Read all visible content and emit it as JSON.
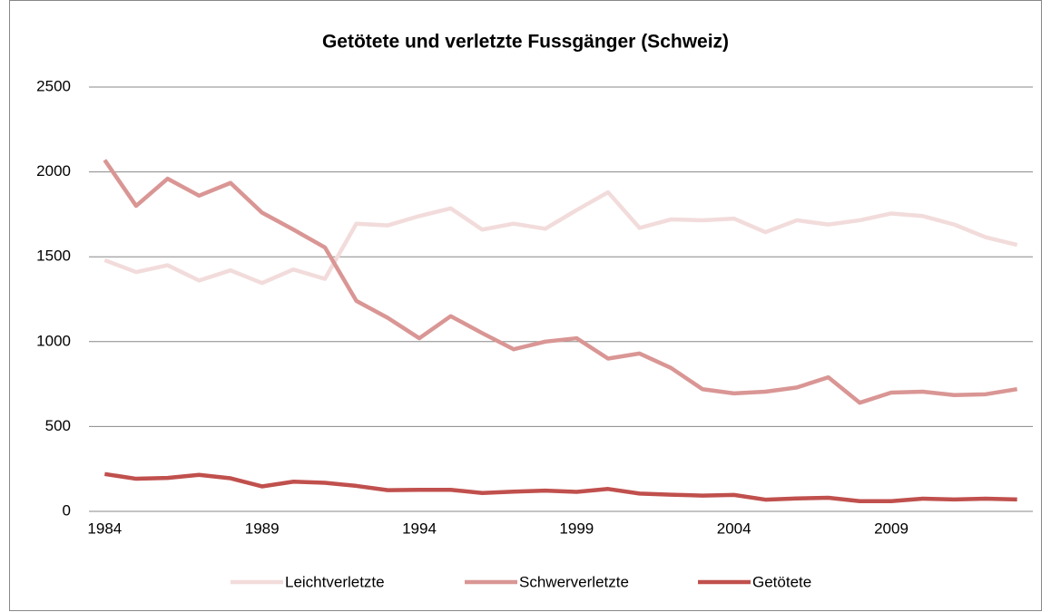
{
  "chart_data": {
    "type": "line",
    "title": "Getötete und verletzte Fussgänger (Schweiz)",
    "categories": [
      "1984",
      null,
      null,
      null,
      null,
      "1989",
      null,
      null,
      null,
      null,
      "1994",
      null,
      null,
      null,
      null,
      "1999",
      null,
      null,
      null,
      null,
      "2004",
      null,
      null,
      null,
      null,
      "2009",
      null,
      null,
      null,
      null
    ],
    "series": [
      {
        "name": "Leichtverletzte",
        "color": "#f2dcdb",
        "values": [
          1480,
          1410,
          1450,
          1360,
          1420,
          1345,
          1425,
          1370,
          1695,
          1685,
          1740,
          1785,
          1660,
          1695,
          1665,
          1775,
          1880,
          1670,
          1720,
          1715,
          1725,
          1645,
          1715,
          1690,
          1715,
          1755,
          1740,
          1690,
          1615,
          1570
        ]
      },
      {
        "name": "Schwerverletzte",
        "color": "#d99694",
        "values": [
          2070,
          1800,
          1960,
          1860,
          1935,
          1760,
          1660,
          1555,
          1240,
          1140,
          1020,
          1150,
          1050,
          955,
          1000,
          1020,
          900,
          930,
          845,
          720,
          695,
          705,
          730,
          790,
          640,
          700,
          705,
          685,
          690,
          720
        ]
      },
      {
        "name": "Getötete",
        "color": "#c0504d",
        "values": [
          220,
          192,
          197,
          215,
          195,
          147,
          175,
          168,
          150,
          125,
          127,
          127,
          108,
          116,
          122,
          115,
          132,
          105,
          98,
          93,
          97,
          69,
          76,
          80,
          60,
          60,
          75,
          70,
          75,
          70
        ]
      }
    ],
    "ylim": [
      0,
      2500
    ],
    "yticks": [
      0,
      500,
      1000,
      1500,
      2000,
      2500
    ],
    "grid": true,
    "legend": "bottom"
  }
}
